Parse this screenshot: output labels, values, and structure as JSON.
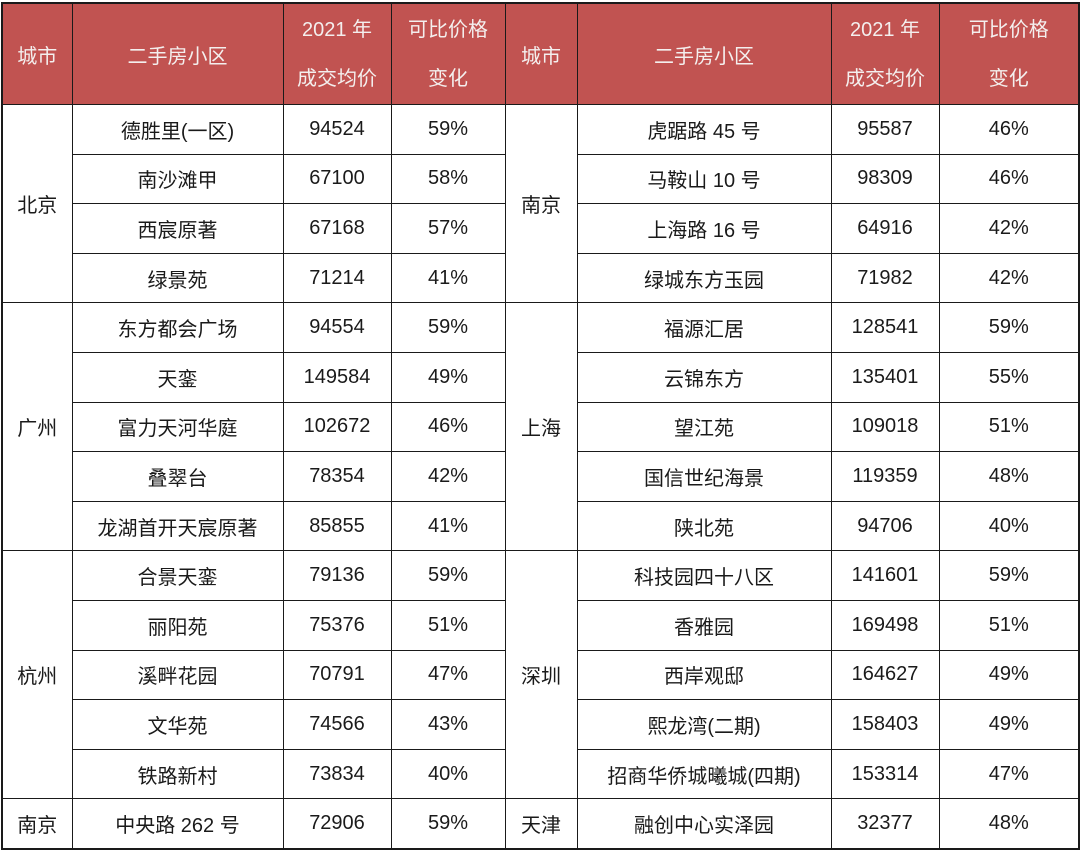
{
  "header": {
    "city": "城市",
    "community": "二手房小区",
    "price_line1": "2021 年",
    "price_line2": "成交均价",
    "change_line1": "可比价格",
    "change_line2": "变化"
  },
  "colors": {
    "header_bg": "#C15351",
    "header_text": "#F4EFEE",
    "border": "#1A1A1A",
    "body_text": "#1A1A1A",
    "body_bg": "#FFFFFF"
  },
  "chart_data": {
    "type": "table",
    "columns": [
      "城市",
      "二手房小区",
      "2021 年成交均价",
      "可比价格变化"
    ],
    "left": {
      "groups": [
        {
          "city": "北京",
          "rows": [
            {
              "community": "德胜里(一区)",
              "price": "94524",
              "change": "59%"
            },
            {
              "community": "南沙滩甲",
              "price": "67100",
              "change": "58%"
            },
            {
              "community": "西宸原著",
              "price": "67168",
              "change": "57%"
            },
            {
              "community": "绿景苑",
              "price": "71214",
              "change": "41%"
            }
          ]
        },
        {
          "city": "广州",
          "rows": [
            {
              "community": "东方都会广场",
              "price": "94554",
              "change": "59%"
            },
            {
              "community": "天銮",
              "price": "149584",
              "change": "49%"
            },
            {
              "community": "富力天河华庭",
              "price": "102672",
              "change": "46%"
            },
            {
              "community": "叠翠台",
              "price": "78354",
              "change": "42%"
            },
            {
              "community": "龙湖首开天宸原著",
              "price": "85855",
              "change": "41%"
            }
          ]
        },
        {
          "city": "杭州",
          "rows": [
            {
              "community": "合景天銮",
              "price": "79136",
              "change": "59%"
            },
            {
              "community": "丽阳苑",
              "price": "75376",
              "change": "51%"
            },
            {
              "community": "溪畔花园",
              "price": "70791",
              "change": "47%"
            },
            {
              "community": "文华苑",
              "price": "74566",
              "change": "43%"
            },
            {
              "community": "铁路新村",
              "price": "73834",
              "change": "40%"
            }
          ]
        },
        {
          "city": "南京",
          "rows": [
            {
              "community": "中央路 262 号",
              "price": "72906",
              "change": "59%"
            }
          ]
        }
      ]
    },
    "right": {
      "groups": [
        {
          "city": "南京",
          "rows": [
            {
              "community": "虎踞路 45 号",
              "price": "95587",
              "change": "46%"
            },
            {
              "community": "马鞍山 10 号",
              "price": "98309",
              "change": "46%"
            },
            {
              "community": "上海路 16 号",
              "price": "64916",
              "change": "42%"
            },
            {
              "community": "绿城东方玉园",
              "price": "71982",
              "change": "42%"
            }
          ]
        },
        {
          "city": "上海",
          "rows": [
            {
              "community": "福源汇居",
              "price": "128541",
              "change": "59%"
            },
            {
              "community": "云锦东方",
              "price": "135401",
              "change": "55%"
            },
            {
              "community": "望江苑",
              "price": "109018",
              "change": "51%"
            },
            {
              "community": "国信世纪海景",
              "price": "119359",
              "change": "48%"
            },
            {
              "community": "陕北苑",
              "price": "94706",
              "change": "40%"
            }
          ]
        },
        {
          "city": "深圳",
          "rows": [
            {
              "community": "科技园四十八区",
              "price": "141601",
              "change": "59%"
            },
            {
              "community": "香雅园",
              "price": "169498",
              "change": "51%"
            },
            {
              "community": "西岸观邸",
              "price": "164627",
              "change": "49%"
            },
            {
              "community": "熙龙湾(二期)",
              "price": "158403",
              "change": "49%"
            },
            {
              "community": "招商华侨城曦城(四期)",
              "price": "153314",
              "change": "47%"
            }
          ]
        },
        {
          "city": "天津",
          "rows": [
            {
              "community": "融创中心实泽园",
              "price": "32377",
              "change": "48%"
            }
          ]
        }
      ]
    }
  }
}
